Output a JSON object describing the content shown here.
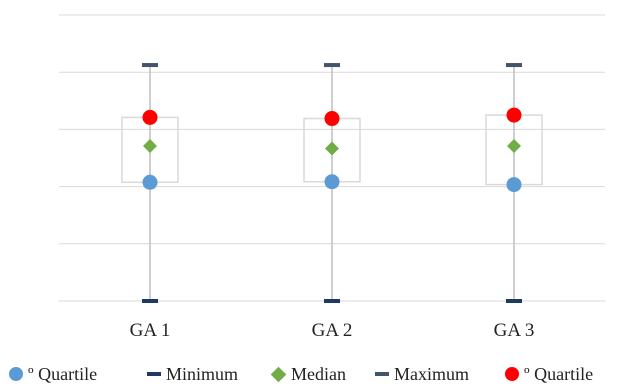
{
  "chart_data": {
    "type": "box",
    "categories": [
      "GA 1",
      "GA 2",
      "GA 3"
    ],
    "ylim": [
      0,
      100
    ],
    "grid": true,
    "legend_position": "bottom",
    "series": [
      {
        "name": "º Quartile",
        "role": "q1",
        "marker": "circle",
        "color": "#5b9bd5",
        "values": [
          41.5,
          41.7,
          40.7
        ]
      },
      {
        "name": "Minimum",
        "role": "min",
        "marker": "dash",
        "color": "#1f3864",
        "values": [
          0,
          0,
          0
        ]
      },
      {
        "name": "Median",
        "role": "median",
        "marker": "diamond",
        "color": "#70ad47",
        "values": [
          54.2,
          53.3,
          54.2
        ]
      },
      {
        "name": "Maximum",
        "role": "max",
        "marker": "dash",
        "color": "#44546a",
        "values": [
          82.5,
          82.5,
          82.5
        ]
      },
      {
        "name": "º Quartile",
        "role": "q3",
        "marker": "circle",
        "color": "#ff0000",
        "values": [
          64.2,
          63.8,
          65.0
        ]
      }
    ]
  },
  "legend": {
    "items": [
      {
        "label": "º Quartile"
      },
      {
        "label": "Minimum"
      },
      {
        "label": "Median"
      },
      {
        "label": "Maximum"
      },
      {
        "label": "º Quartile"
      }
    ]
  }
}
